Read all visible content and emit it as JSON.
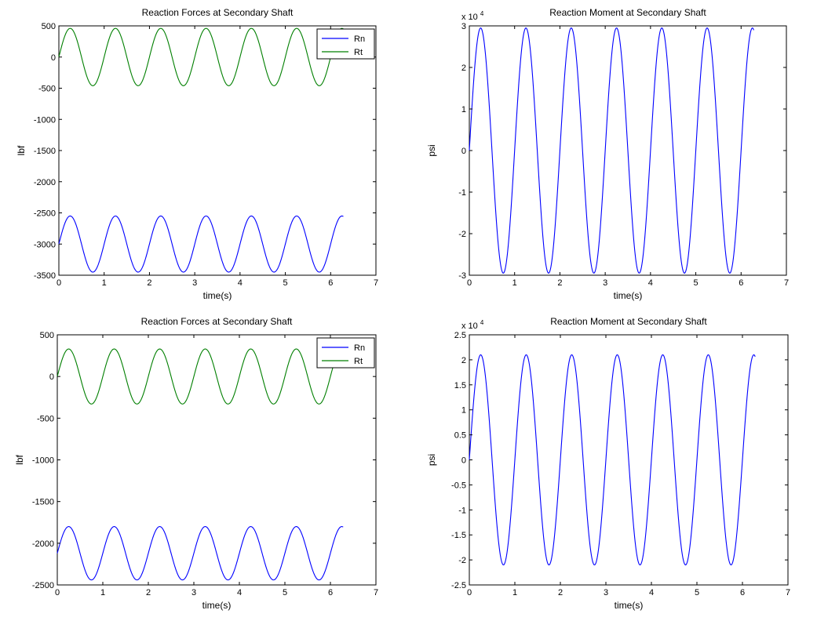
{
  "chart_data": [
    {
      "type": "line",
      "title": "Reaction Forces at Secondary Shaft",
      "xlabel": "time(s)",
      "ylabel": "lbf",
      "xlim": [
        0,
        7
      ],
      "ylim": [
        -3500,
        500
      ],
      "xticks": [
        "0",
        "1",
        "2",
        "3",
        "4",
        "5",
        "6",
        "7"
      ],
      "yticks": [
        "500",
        "0",
        "-500",
        "-1000",
        "-1500",
        "-2000",
        "-2500",
        "-3000",
        "-3500"
      ],
      "exponent_label": "",
      "grid": false,
      "legend_position": "top-right",
      "series": [
        {
          "name": "Rn",
          "color": "#0000ff",
          "kind": "sinusoid",
          "mean": -3000,
          "amplitude": 450,
          "frequency_hz": 1,
          "phase_peak_t": 0.25,
          "t_start": 0,
          "t_end": 6.28
        },
        {
          "name": "Rt",
          "color": "#007f00",
          "kind": "sinusoid",
          "mean": 0,
          "amplitude": 460,
          "frequency_hz": 1,
          "phase_peak_t": 0.25,
          "t_start": 0,
          "t_end": 6.28
        }
      ]
    },
    {
      "type": "line",
      "title": "Reaction Moment at Secondary Shaft",
      "xlabel": "time(s)",
      "ylabel": "psi",
      "xlim": [
        0,
        7
      ],
      "ylim": [
        -3,
        3
      ],
      "xticks": [
        "0",
        "1",
        "2",
        "3",
        "4",
        "5",
        "6",
        "7"
      ],
      "yticks": [
        "3",
        "2",
        "1",
        "0",
        "-1",
        "-2",
        "-3"
      ],
      "exponent_label": "x 10",
      "exponent_power": "4",
      "grid": false,
      "legend_position": "none",
      "series": [
        {
          "name": "",
          "color": "#0000ff",
          "kind": "sinusoid",
          "mean": 0,
          "amplitude": 2.95,
          "frequency_hz": 1,
          "phase_peak_t": 0.25,
          "t_start": 0,
          "t_end": 6.28
        }
      ]
    },
    {
      "type": "line",
      "title": "Reaction Forces at Secondary Shaft",
      "xlabel": "time(s)",
      "ylabel": "lbf",
      "xlim": [
        0,
        7
      ],
      "ylim": [
        -2500,
        500
      ],
      "xticks": [
        "0",
        "1",
        "2",
        "3",
        "4",
        "5",
        "6",
        "7"
      ],
      "yticks": [
        "500",
        "0",
        "-500",
        "-1000",
        "-1500",
        "-2000",
        "-2500"
      ],
      "exponent_label": "",
      "grid": false,
      "legend_position": "top-right",
      "series": [
        {
          "name": "Rn",
          "color": "#0000ff",
          "kind": "sinusoid",
          "mean": -2120,
          "amplitude": 320,
          "frequency_hz": 1,
          "phase_peak_t": 0.25,
          "t_start": 0,
          "t_end": 6.28
        },
        {
          "name": "Rt",
          "color": "#007f00",
          "kind": "sinusoid",
          "mean": 0,
          "amplitude": 330,
          "frequency_hz": 1,
          "phase_peak_t": 0.25,
          "t_start": 0,
          "t_end": 6.28
        }
      ]
    },
    {
      "type": "line",
      "title": "Reaction Moment at Secondary Shaft",
      "xlabel": "time(s)",
      "ylabel": "psi",
      "xlim": [
        0,
        7
      ],
      "ylim": [
        -2.5,
        2.5
      ],
      "xticks": [
        "0",
        "1",
        "2",
        "3",
        "4",
        "5",
        "6",
        "7"
      ],
      "yticks": [
        "2.5",
        "2",
        "1.5",
        "1",
        "0.5",
        "0",
        "-0.5",
        "-1",
        "-1.5",
        "-2",
        "-2.5"
      ],
      "exponent_label": "x 10",
      "exponent_power": "4",
      "grid": false,
      "legend_position": "none",
      "series": [
        {
          "name": "",
          "color": "#0000ff",
          "kind": "sinusoid",
          "mean": 0,
          "amplitude": 2.1,
          "frequency_hz": 1,
          "phase_peak_t": 0.25,
          "t_start": 0,
          "t_end": 6.28
        }
      ]
    }
  ]
}
